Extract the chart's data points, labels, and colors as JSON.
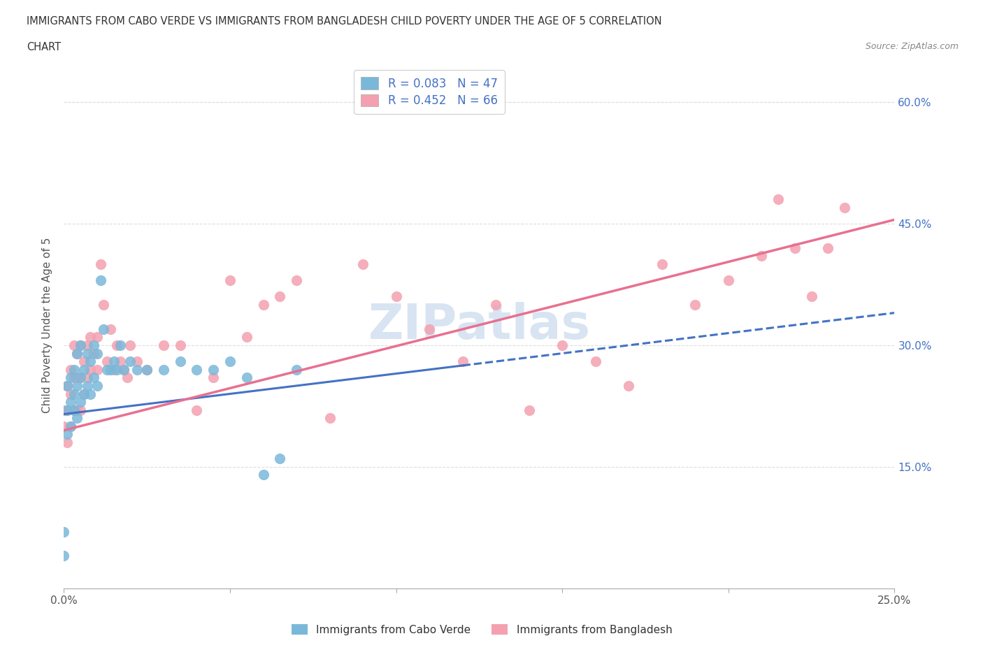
{
  "title_line1": "IMMIGRANTS FROM CABO VERDE VS IMMIGRANTS FROM BANGLADESH CHILD POVERTY UNDER THE AGE OF 5 CORRELATION",
  "title_line2": "CHART",
  "source": "Source: ZipAtlas.com",
  "ylabel": "Child Poverty Under the Age of 5",
  "xlim": [
    0.0,
    0.25
  ],
  "ylim": [
    0.0,
    0.65
  ],
  "cabo_verde_color": "#7ab8d9",
  "bangladesh_color": "#f4a0b0",
  "cabo_verde_R": 0.083,
  "cabo_verde_N": 47,
  "bangladesh_R": 0.452,
  "bangladesh_N": 66,
  "legend_label_cv": "Immigrants from Cabo Verde",
  "legend_label_bd": "Immigrants from Bangladesh",
  "watermark": "ZIPatlas",
  "cabo_verde_scatter_x": [
    0.0,
    0.0,
    0.001,
    0.001,
    0.001,
    0.002,
    0.002,
    0.002,
    0.003,
    0.003,
    0.003,
    0.004,
    0.004,
    0.004,
    0.005,
    0.005,
    0.005,
    0.006,
    0.006,
    0.007,
    0.007,
    0.008,
    0.008,
    0.009,
    0.009,
    0.01,
    0.01,
    0.011,
    0.012,
    0.013,
    0.014,
    0.015,
    0.016,
    0.017,
    0.018,
    0.02,
    0.022,
    0.025,
    0.03,
    0.035,
    0.04,
    0.045,
    0.05,
    0.055,
    0.06,
    0.065,
    0.07
  ],
  "cabo_verde_scatter_y": [
    0.04,
    0.07,
    0.19,
    0.22,
    0.25,
    0.2,
    0.23,
    0.26,
    0.22,
    0.24,
    0.27,
    0.21,
    0.25,
    0.29,
    0.23,
    0.26,
    0.3,
    0.24,
    0.27,
    0.25,
    0.29,
    0.24,
    0.28,
    0.26,
    0.3,
    0.25,
    0.29,
    0.38,
    0.32,
    0.27,
    0.27,
    0.28,
    0.27,
    0.3,
    0.27,
    0.28,
    0.27,
    0.27,
    0.27,
    0.28,
    0.27,
    0.27,
    0.28,
    0.26,
    0.14,
    0.16,
    0.27
  ],
  "bangladesh_scatter_x": [
    0.0,
    0.0,
    0.001,
    0.001,
    0.001,
    0.002,
    0.002,
    0.002,
    0.003,
    0.003,
    0.003,
    0.004,
    0.004,
    0.004,
    0.005,
    0.005,
    0.005,
    0.006,
    0.006,
    0.007,
    0.007,
    0.008,
    0.008,
    0.009,
    0.01,
    0.01,
    0.011,
    0.012,
    0.013,
    0.014,
    0.015,
    0.016,
    0.017,
    0.018,
    0.019,
    0.02,
    0.022,
    0.025,
    0.03,
    0.035,
    0.04,
    0.045,
    0.05,
    0.055,
    0.06,
    0.065,
    0.07,
    0.08,
    0.09,
    0.1,
    0.11,
    0.12,
    0.13,
    0.14,
    0.15,
    0.16,
    0.17,
    0.18,
    0.19,
    0.2,
    0.21,
    0.215,
    0.22,
    0.225,
    0.23,
    0.235
  ],
  "bangladesh_scatter_y": [
    0.2,
    0.22,
    0.18,
    0.22,
    0.25,
    0.2,
    0.24,
    0.27,
    0.22,
    0.26,
    0.3,
    0.22,
    0.26,
    0.29,
    0.22,
    0.26,
    0.3,
    0.24,
    0.28,
    0.26,
    0.3,
    0.27,
    0.31,
    0.29,
    0.27,
    0.31,
    0.4,
    0.35,
    0.28,
    0.32,
    0.27,
    0.3,
    0.28,
    0.27,
    0.26,
    0.3,
    0.28,
    0.27,
    0.3,
    0.3,
    0.22,
    0.26,
    0.38,
    0.31,
    0.35,
    0.36,
    0.38,
    0.21,
    0.4,
    0.36,
    0.32,
    0.28,
    0.35,
    0.22,
    0.3,
    0.28,
    0.25,
    0.4,
    0.35,
    0.38,
    0.41,
    0.48,
    0.42,
    0.36,
    0.42,
    0.47
  ],
  "cv_line_x": [
    0.0,
    0.12
  ],
  "cv_line_y": [
    0.215,
    0.275
  ],
  "bd_line_x": [
    0.0,
    0.25
  ],
  "bd_line_y": [
    0.195,
    0.455
  ]
}
